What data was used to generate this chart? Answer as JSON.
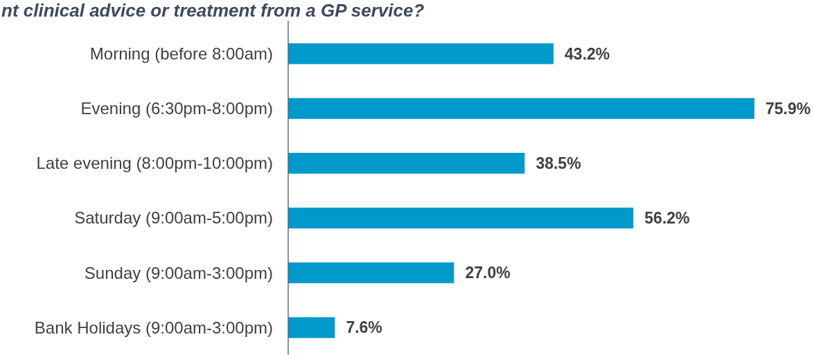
{
  "chart_data": {
    "type": "bar",
    "orientation": "horizontal",
    "title": "nt clinical advice or treatment from a GP service?",
    "categories": [
      "Morning (before 8:00am)",
      "Evening (6:30pm-8:00pm)",
      "Late evening (8:00pm-10:00pm)",
      "Saturday (9:00am-5:00pm)",
      "Sunday (9:00am-3:00pm)",
      "Bank Holidays (9:00am-3:00pm)"
    ],
    "values": [
      43.2,
      75.9,
      38.5,
      56.2,
      27.0,
      7.6
    ],
    "value_labels": [
      "43.2%",
      "75.9%",
      "38.5%",
      "56.2%",
      "27.0%",
      "7.6%"
    ],
    "color": "#0099cc"
  }
}
